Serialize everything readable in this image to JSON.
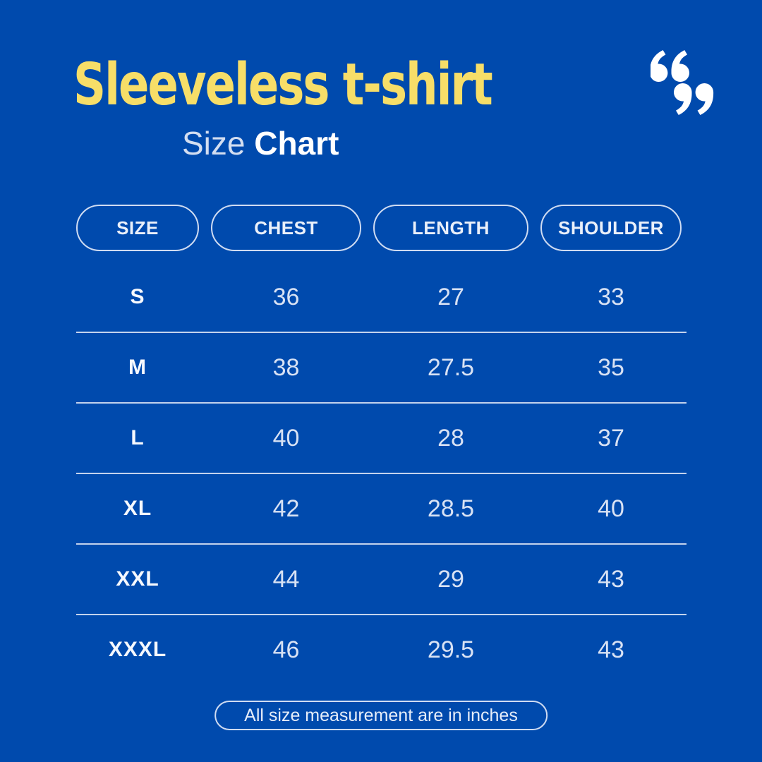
{
  "header": {
    "title": "Sleeveless t-shirt",
    "subtitle_light": "Size",
    "subtitle_bold": "Chart"
  },
  "footnote": "All size measurement are in inches",
  "colors": {
    "background": "#004AAD",
    "title_yellow": "#F7DE68",
    "label_white": "#FFFFFF",
    "value_light": "#D8E2F4",
    "outline_light": "#CFDCF2"
  },
  "icons": {
    "quotation_marks": "double-quote-marks"
  },
  "chart_data": {
    "type": "table",
    "title": "Sleeveless t-shirt",
    "subtitle": "Size Chart",
    "columns": [
      "SIZE",
      "CHEST",
      "LENGTH",
      "SHOULDER"
    ],
    "rows": [
      [
        "S",
        "36",
        "27",
        "33"
      ],
      [
        "M",
        "38",
        "27.5",
        "35"
      ],
      [
        "L",
        "40",
        "28",
        "37"
      ],
      [
        "XL",
        "42",
        "28.5",
        "40"
      ],
      [
        "XXL",
        "44",
        "29",
        "43"
      ],
      [
        "XXXL",
        "46",
        "29.5",
        "43"
      ]
    ],
    "note": "All size measurement are in inches",
    "units": "inches"
  }
}
